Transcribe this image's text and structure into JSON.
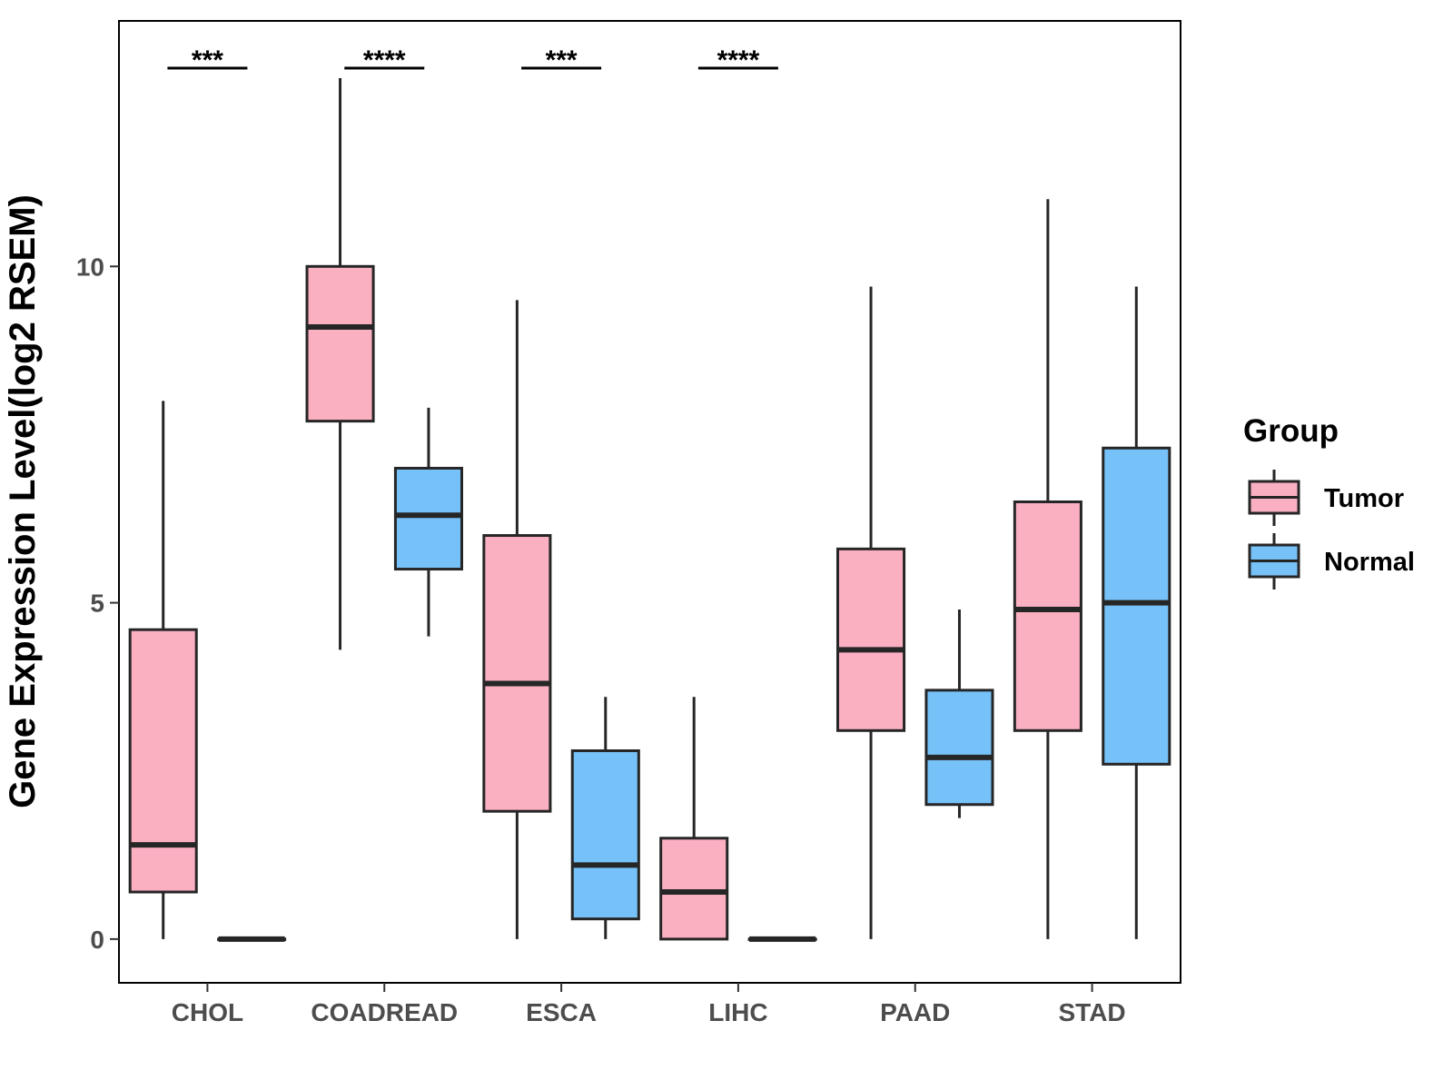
{
  "chart_data": {
    "type": "boxplot",
    "ylabel": "Gene Expression Level(log2 RSEM)",
    "xlabel": "",
    "ylim": [
      -0.65,
      13.65
    ],
    "yticks": [
      0,
      5,
      10
    ],
    "grid": false,
    "categories": [
      "CHOL",
      "COADREAD",
      "ESCA",
      "LIHC",
      "PAAD",
      "STAD"
    ],
    "legend": {
      "title": "Group",
      "position": "right",
      "entries": [
        {
          "name": "Tumor",
          "color": "#FBB0C2"
        },
        {
          "name": "Normal",
          "color": "#76C1F8"
        }
      ]
    },
    "series": [
      {
        "name": "Tumor",
        "color": "#FBB0C2",
        "boxes": [
          {
            "category": "CHOL",
            "min": 0.0,
            "q1": 0.7,
            "median": 1.4,
            "q3": 4.6,
            "max": 8.0
          },
          {
            "category": "COADREAD",
            "min": 4.3,
            "q1": 7.7,
            "median": 9.1,
            "q3": 10.0,
            "max": 12.8
          },
          {
            "category": "ESCA",
            "min": 0.0,
            "q1": 1.9,
            "median": 3.8,
            "q3": 6.0,
            "max": 9.5
          },
          {
            "category": "LIHC",
            "min": 0.0,
            "q1": 0.0,
            "median": 0.7,
            "q3": 1.5,
            "max": 3.6
          },
          {
            "category": "PAAD",
            "min": 0.0,
            "q1": 3.1,
            "median": 4.3,
            "q3": 5.8,
            "max": 9.7
          },
          {
            "category": "STAD",
            "min": 0.0,
            "q1": 3.1,
            "median": 4.9,
            "q3": 6.5,
            "max": 11.0
          }
        ]
      },
      {
        "name": "Normal",
        "color": "#76C1F8",
        "boxes": [
          {
            "category": "CHOL",
            "min": 0.0,
            "q1": 0.0,
            "median": 0.0,
            "q3": 0.0,
            "max": 0.0
          },
          {
            "category": "COADREAD",
            "min": 4.5,
            "q1": 5.5,
            "median": 6.3,
            "q3": 7.0,
            "max": 7.9
          },
          {
            "category": "ESCA",
            "min": 0.0,
            "q1": 0.3,
            "median": 1.1,
            "q3": 2.8,
            "max": 3.6
          },
          {
            "category": "LIHC",
            "min": 0.0,
            "q1": 0.0,
            "median": 0.0,
            "q3": 0.0,
            "max": 0.0
          },
          {
            "category": "PAAD",
            "min": 1.8,
            "q1": 2.0,
            "median": 2.7,
            "q3": 3.7,
            "max": 4.9
          },
          {
            "category": "STAD",
            "min": 0.0,
            "q1": 2.6,
            "median": 5.0,
            "q3": 7.3,
            "max": 9.7
          }
        ]
      }
    ],
    "significance": [
      {
        "category": "CHOL",
        "label": "***"
      },
      {
        "category": "COADREAD",
        "label": "****"
      },
      {
        "category": "ESCA",
        "label": "***"
      },
      {
        "category": "LIHC",
        "label": "****"
      }
    ]
  }
}
